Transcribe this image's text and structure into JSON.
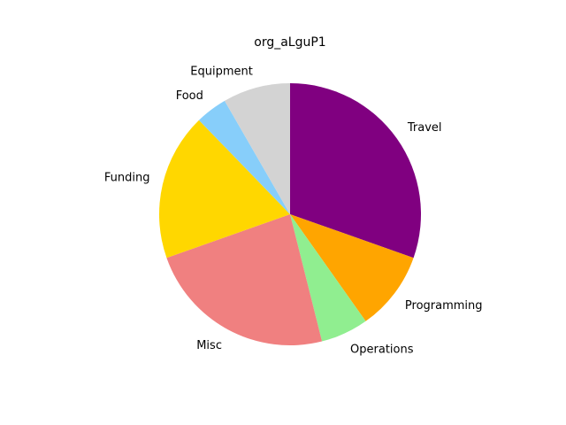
{
  "chart_data": {
    "type": "pie",
    "title": "org_aLguP1",
    "start_angle_deg": 90,
    "direction": "clockwise",
    "slices": [
      {
        "label": "Travel",
        "value": 31.0,
        "color": "#800080"
      },
      {
        "label": "Programming",
        "value": 10.0,
        "color": "#FFA500"
      },
      {
        "label": "Operations",
        "value": 6.0,
        "color": "#90EE90"
      },
      {
        "label": "Misc",
        "value": 24.0,
        "color": "#F08080"
      },
      {
        "label": "Funding",
        "value": 18.5,
        "color": "#FFD700"
      },
      {
        "label": "Food",
        "value": 4.0,
        "color": "#87CEFA"
      },
      {
        "label": "Equipment",
        "value": 8.5,
        "color": "#D3D3D3"
      }
    ]
  }
}
